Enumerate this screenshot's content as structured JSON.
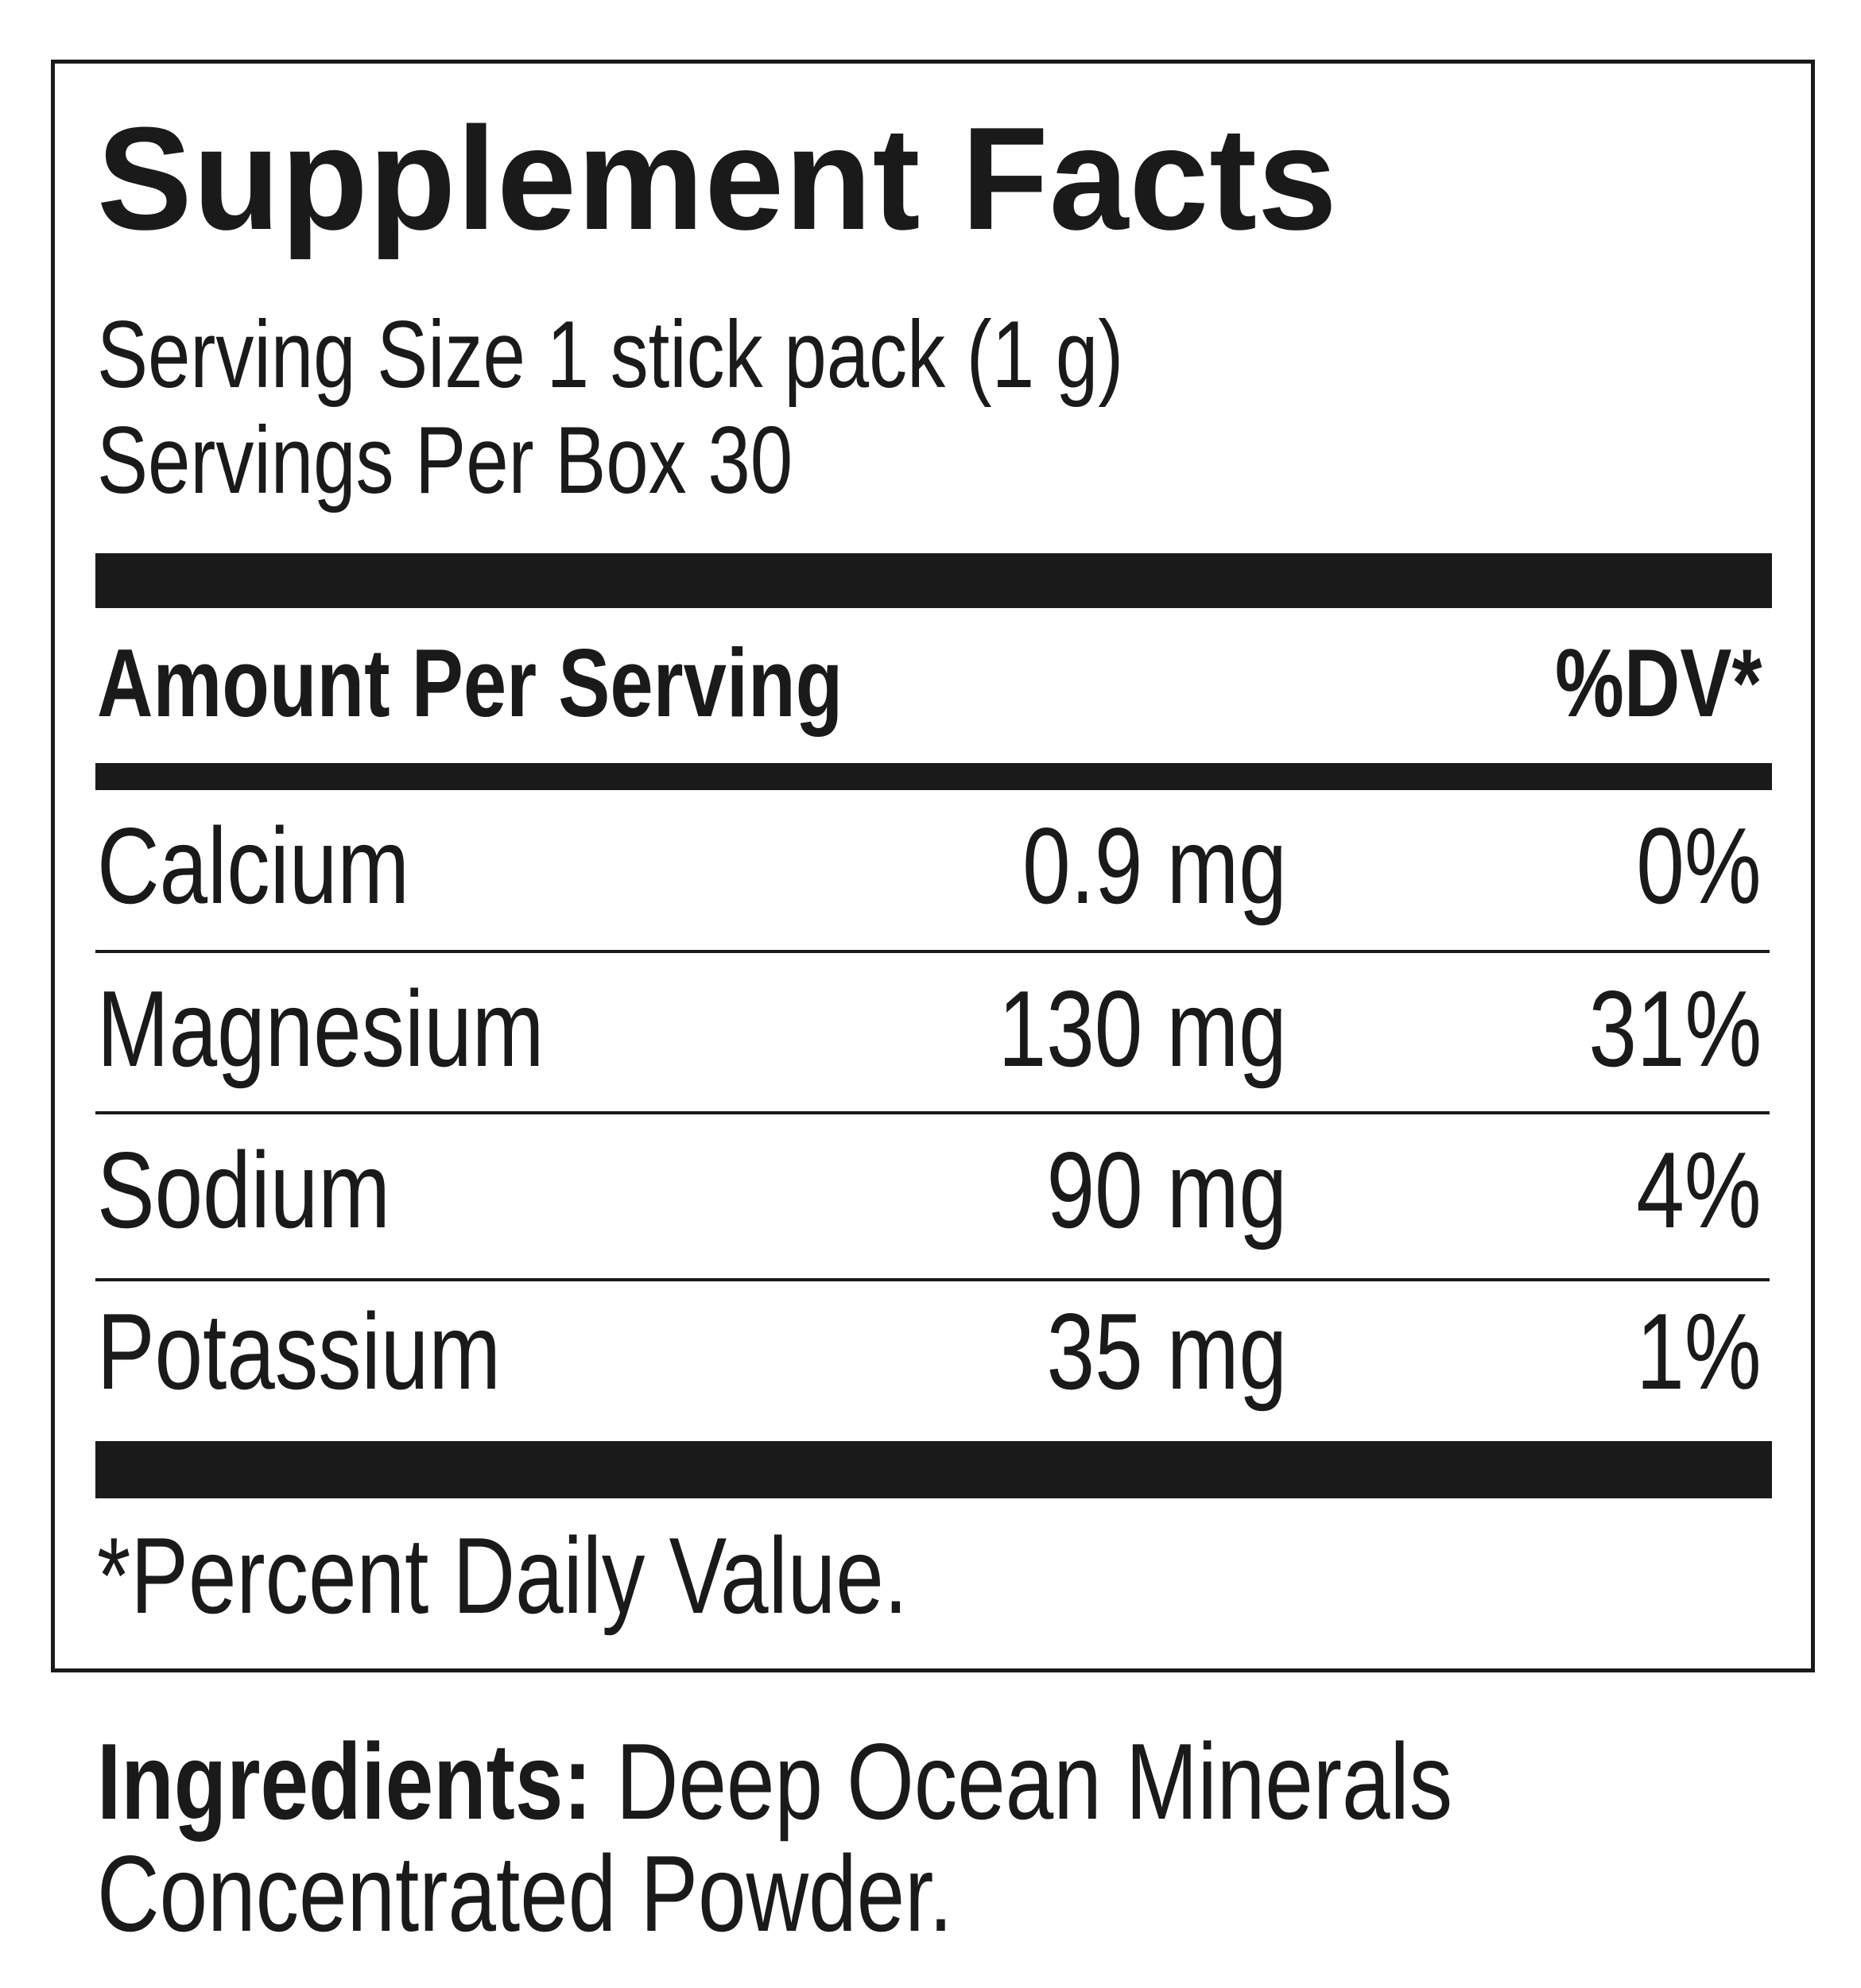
{
  "label": {
    "title": "Supplement Facts",
    "serving_size": "Serving Size 1 stick pack (1 g)",
    "servings_per_container": "Servings Per Box 30",
    "header_amount": "Amount Per Serving",
    "header_dv": "%DV*",
    "rows": [
      {
        "name": "Calcium",
        "amount": "0.9 mg",
        "dv": "0%"
      },
      {
        "name": "Magnesium",
        "amount": "130 mg",
        "dv": "31%"
      },
      {
        "name": "Sodium",
        "amount": "90 mg",
        "dv": "4%"
      },
      {
        "name": "Potassium",
        "amount": "35 mg",
        "dv": "1%"
      }
    ],
    "footnote": "*Percent Daily Value."
  },
  "ingredients": {
    "label": "Ingredients:",
    "line1": " Deep Ocean Minerals",
    "line2": "Concentrated Powder."
  }
}
